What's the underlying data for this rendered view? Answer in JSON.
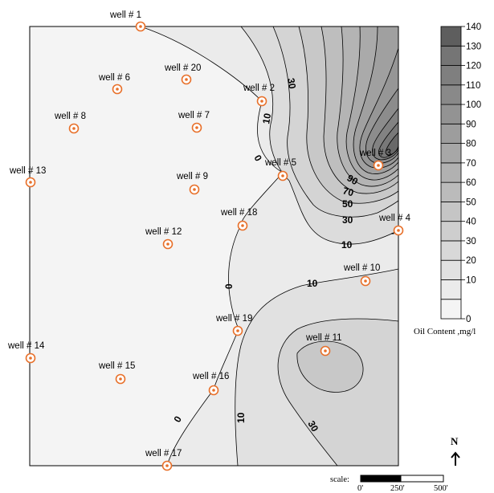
{
  "legend": {
    "title": "Oil Content ,mg/l",
    "ticks": [
      "0",
      "10",
      "20",
      "30",
      "40",
      "50",
      "60",
      "70",
      "80",
      "90",
      "100",
      "110",
      "120",
      "130",
      "140"
    ],
    "colors": [
      "#f4f4f4",
      "#ebebeb",
      "#e1e1e1",
      "#d8d8d8",
      "#cecece",
      "#c5c5c5",
      "#bbbbbb",
      "#b1b1b1",
      "#a7a7a7",
      "#9d9d9d",
      "#939393",
      "#898989",
      "#7f7f7f",
      "#757575",
      "#5e5e5e"
    ]
  },
  "wells": [
    {
      "label": "well # 1"
    },
    {
      "label": "well # 20"
    },
    {
      "label": "well # 6"
    },
    {
      "label": "well # 2"
    },
    {
      "label": "well # 8"
    },
    {
      "label": "well # 7"
    },
    {
      "label": "well # 3"
    },
    {
      "label": "well # 13"
    },
    {
      "label": "well # 9"
    },
    {
      "label": "well # 5"
    },
    {
      "label": "well # 18"
    },
    {
      "label": "well # 4"
    },
    {
      "label": "well # 12"
    },
    {
      "label": "well # 10"
    },
    {
      "label": "well # 19"
    },
    {
      "label": "well # 11"
    },
    {
      "label": "well # 14"
    },
    {
      "label": "well # 15"
    },
    {
      "label": "well # 16"
    },
    {
      "label": "well # 17"
    }
  ],
  "contour_labels": [
    "30",
    "10",
    "0",
    "90",
    "70",
    "50",
    "30",
    "10",
    "-",
    "0",
    "10",
    "10",
    "30",
    "0",
    "10"
  ],
  "scale": {
    "prefix": "scale:",
    "ticks": [
      "0'",
      "250'",
      "500'"
    ]
  },
  "north": "N",
  "colors": {
    "well_marker": "#e8702a",
    "frame": "#000000"
  }
}
